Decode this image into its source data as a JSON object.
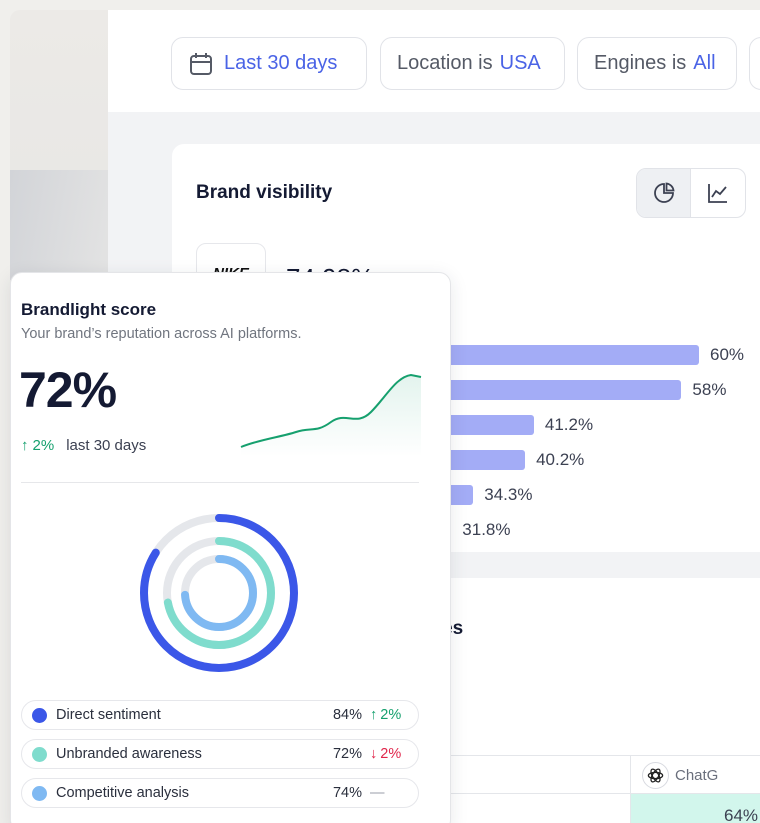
{
  "filters": {
    "date_label": "Last 30 days",
    "location_prefix": "Location is",
    "location_value": "USA",
    "engines_prefix": "Engines is",
    "engines_value": "All"
  },
  "brand_visibility": {
    "title": "Brand visibility",
    "brand_logo_text": "NIKE",
    "brand_pct": "74.98%",
    "bars": [
      {
        "value": 60,
        "label": "60%"
      },
      {
        "value": 58,
        "label": "58%"
      },
      {
        "value": 41.2,
        "label": "41.2%"
      },
      {
        "value": 40.2,
        "label": "40.2%"
      },
      {
        "value": 34.3,
        "label": "34.3%"
      },
      {
        "value": 31.8,
        "label": "31.8%"
      }
    ],
    "bar_color": "#a3acf6"
  },
  "engines_card": {
    "title_fragment": "ngines",
    "chatgpt_header": "ChatG",
    "chatgpt_value": "64%",
    "highlight_color": "#d2f6ec"
  },
  "score": {
    "title": "Brandlight score",
    "subtitle": "Your brand’s reputation across AI platforms.",
    "value": "72%",
    "delta": "2%",
    "delta_label": "last 30 days",
    "spark_color": "#16a06e",
    "rings": [
      {
        "name": "Direct sentiment",
        "fraction": 0.84,
        "color": "#3b57e8",
        "value": "84%",
        "change": "2%",
        "direction": "up"
      },
      {
        "name": "Unbranded awareness",
        "fraction": 0.72,
        "color": "#7fdccd",
        "value": "72%",
        "change": "2%",
        "direction": "down"
      },
      {
        "name": "Competitive analysis",
        "fraction": 0.74,
        "color": "#7fb9f2",
        "value": "74%",
        "change": "",
        "direction": "flat"
      }
    ]
  }
}
